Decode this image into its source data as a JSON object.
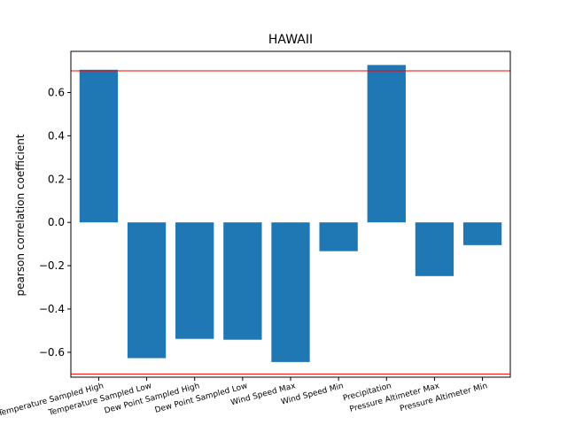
{
  "chart_data": {
    "type": "bar",
    "title": "HAWAII",
    "xlabel": "",
    "ylabel": "pearson correlation coefficient",
    "categories": [
      "Temperature Sampled High",
      "Temperature Sampled Low",
      "Dew Point Sampled High",
      "Dew Point Sampled Low",
      "Wind Speed Max",
      "Wind Speed Min",
      "Precipitation",
      "Pressure Altimeter Max",
      "Pressure Altimeter Min"
    ],
    "values": [
      0.705,
      -0.627,
      -0.538,
      -0.542,
      -0.645,
      -0.133,
      0.727,
      -0.248,
      -0.105
    ],
    "ylim": [
      -0.715,
      0.79
    ],
    "yticks": [
      -0.6,
      -0.4,
      -0.2,
      0.0,
      0.2,
      0.4,
      0.6
    ],
    "ytick_labels": [
      "−0.6",
      "−0.4",
      "−0.2",
      "0.0",
      "0.2",
      "0.4",
      "0.6"
    ],
    "reference_lines": [
      0.7,
      -0.7
    ],
    "bar_color": "#1f77b4",
    "reference_line_color": "#ff0000",
    "grid": false,
    "legend": "none"
  }
}
